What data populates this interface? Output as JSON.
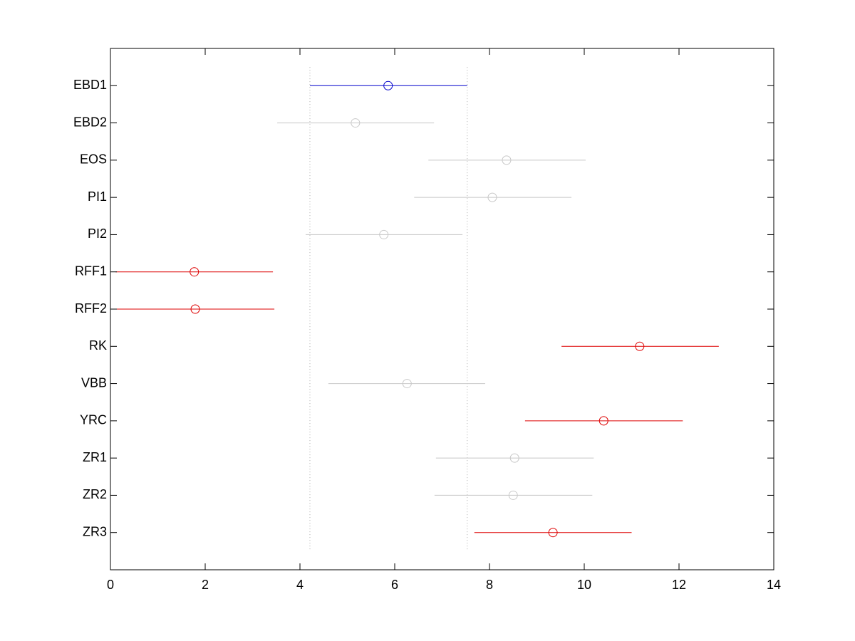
{
  "chart_data": {
    "type": "interval",
    "categories": [
      "EBD1",
      "EBD2",
      "EOS",
      "PI1",
      "PI2",
      "RFF1",
      "RFF2",
      "RK",
      "VBB",
      "YRC",
      "ZR1",
      "ZR2",
      "ZR3"
    ],
    "values": [
      5.86,
      5.17,
      8.36,
      8.06,
      5.77,
      1.77,
      1.79,
      11.17,
      6.26,
      10.41,
      8.53,
      8.5,
      9.34
    ],
    "lower": [
      4.21,
      3.52,
      6.71,
      6.41,
      4.12,
      0.11,
      0.13,
      9.52,
      4.6,
      8.75,
      6.87,
      6.84,
      7.68
    ],
    "upper": [
      7.53,
      6.83,
      10.03,
      9.73,
      7.43,
      3.43,
      3.46,
      12.84,
      7.91,
      12.08,
      10.2,
      10.17,
      11.0
    ],
    "colors": [
      "#0000cc",
      "#c8c8c8",
      "#c8c8c8",
      "#c8c8c8",
      "#c8c8c8",
      "#dd0000",
      "#dd0000",
      "#dd0000",
      "#c8c8c8",
      "#dd0000",
      "#c8c8c8",
      "#c8c8c8",
      "#dd0000"
    ],
    "reference_index": 0,
    "xlim": [
      0,
      14
    ],
    "xticks": [
      0,
      2,
      4,
      6,
      8,
      10,
      12,
      14
    ]
  }
}
